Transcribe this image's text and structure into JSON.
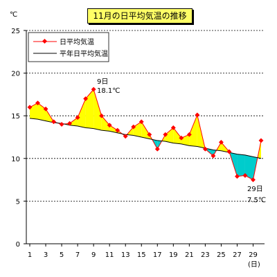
{
  "chart_data": {
    "type": "line",
    "title": "11月の日平均気温の推移",
    "unit_label": "℃",
    "xlabel": "(日)",
    "ylabel": "",
    "xlim": [
      1,
      30
    ],
    "ylim": [
      0,
      25
    ],
    "y_ticks": [
      0,
      5,
      10,
      15,
      20,
      25
    ],
    "x_ticks": [
      1,
      3,
      5,
      7,
      9,
      11,
      13,
      15,
      17,
      19,
      21,
      23,
      25,
      27,
      29
    ],
    "grid": "horizontal-dashed",
    "legend": "top-left",
    "x": [
      1,
      2,
      3,
      4,
      5,
      6,
      7,
      8,
      9,
      10,
      11,
      12,
      13,
      14,
      15,
      16,
      17,
      18,
      19,
      20,
      21,
      22,
      23,
      24,
      25,
      26,
      27,
      28,
      29,
      30
    ],
    "series": [
      {
        "name": "日平均気温",
        "color": "#ff0000",
        "marker": "diamond",
        "values": [
          16.0,
          16.5,
          15.8,
          14.3,
          14.0,
          14.1,
          14.8,
          17.0,
          18.1,
          15.0,
          13.9,
          13.3,
          12.6,
          13.7,
          14.3,
          12.8,
          11.1,
          12.8,
          13.6,
          12.4,
          12.8,
          15.1,
          11.1,
          10.3,
          11.9,
          10.8,
          7.9,
          8.0,
          7.5,
          12.1
        ]
      },
      {
        "name": "平年日平均気温",
        "color": "#000000",
        "marker": "none",
        "values": [
          14.7,
          14.6,
          14.4,
          14.2,
          14.1,
          13.9,
          13.8,
          13.6,
          13.5,
          13.3,
          13.2,
          13.0,
          12.8,
          12.7,
          12.5,
          12.3,
          12.1,
          12.0,
          11.8,
          11.7,
          11.5,
          11.4,
          11.2,
          11.0,
          10.9,
          10.7,
          10.5,
          10.4,
          10.2,
          10.0
        ]
      }
    ],
    "annotations": [
      {
        "day_label": "9日",
        "value_label": "18.1℃"
      },
      {
        "day_label": "29日",
        "value_label": "7.5℃"
      }
    ],
    "fill_above_color": "#ffff00",
    "fill_below_color": "#00cccc"
  }
}
